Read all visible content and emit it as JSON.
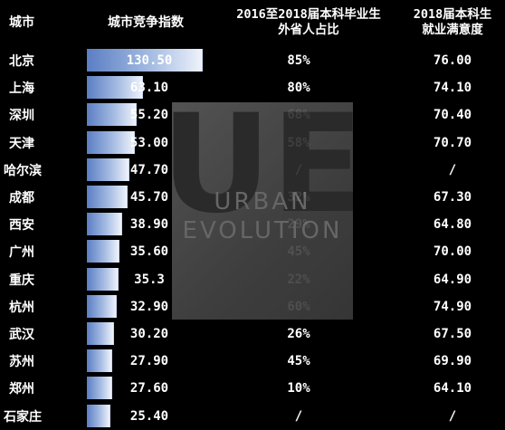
{
  "headers": {
    "city": "城市",
    "index": "城市竞争指数",
    "ratio_line1": "2016至2018届本科毕业生",
    "ratio_line2": "外省人占比",
    "sat_line1": "2018届本科生",
    "sat_line2": "就业满意度"
  },
  "watermark": {
    "logo": "UE",
    "line1": "URBAN",
    "line2": "EVOLUTION"
  },
  "chart_data": {
    "type": "table",
    "columns": [
      "城市",
      "城市竞争指数",
      "2016至2018届本科毕业生外省人占比",
      "2018届本科生就业满意度"
    ],
    "rows": [
      {
        "city": "北京",
        "index": 130.5,
        "index_label": "130.50",
        "ratio": "85%",
        "sat": "76.00"
      },
      {
        "city": "上海",
        "index": 63.1,
        "index_label": "63.10",
        "ratio": "80%",
        "sat": "74.10"
      },
      {
        "city": "深圳",
        "index": 55.2,
        "index_label": "55.20",
        "ratio": "68%",
        "sat": "70.40"
      },
      {
        "city": "天津",
        "index": 53.0,
        "index_label": "53.00",
        "ratio": "58%",
        "sat": "70.70"
      },
      {
        "city": "哈尔滨",
        "index": 47.7,
        "index_label": "47.70",
        "ratio": "/",
        "sat": "/"
      },
      {
        "city": "成都",
        "index": 45.7,
        "index_label": "45.70",
        "ratio": "32%",
        "sat": "67.30"
      },
      {
        "city": "西安",
        "index": 38.9,
        "index_label": "38.90",
        "ratio": "29%",
        "sat": "64.80"
      },
      {
        "city": "广州",
        "index": 35.6,
        "index_label": "35.60",
        "ratio": "45%",
        "sat": "70.00"
      },
      {
        "city": "重庆",
        "index": 35.3,
        "index_label": "35.3",
        "ratio": "22%",
        "sat": "64.90"
      },
      {
        "city": "杭州",
        "index": 32.9,
        "index_label": "32.90",
        "ratio": "60%",
        "sat": "74.90"
      },
      {
        "city": "武汉",
        "index": 30.2,
        "index_label": "30.20",
        "ratio": "26%",
        "sat": "67.50"
      },
      {
        "city": "苏州",
        "index": 27.9,
        "index_label": "27.90",
        "ratio": "45%",
        "sat": "69.90"
      },
      {
        "city": "郑州",
        "index": 27.6,
        "index_label": "27.60",
        "ratio": "10%",
        "sat": "64.10"
      },
      {
        "city": "石家庄",
        "index": 25.4,
        "index_label": "25.40",
        "ratio": "/",
        "sat": "/"
      }
    ],
    "bar_max": 130.5,
    "bar_color": "#5b7ec3"
  }
}
